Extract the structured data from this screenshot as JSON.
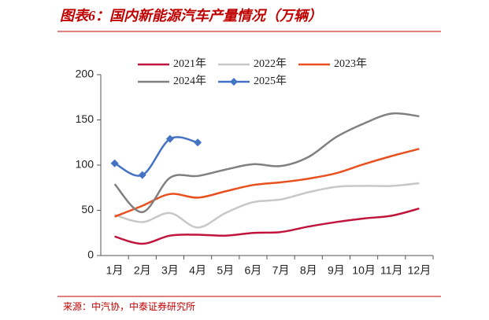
{
  "chart_data": {
    "type": "line",
    "title": "图表6：国内新能源汽车产量情况（万辆）",
    "source": "来源：中汽协，中泰证券研究所",
    "categories": [
      "1月",
      "2月",
      "3月",
      "4月",
      "5月",
      "6月",
      "7月",
      "8月",
      "9月",
      "10月",
      "11月",
      "12月"
    ],
    "series": [
      {
        "name": "2021年",
        "color": "#c0143c",
        "values": [
          21,
          13,
          22,
          23,
          22,
          25,
          26,
          32,
          37,
          41,
          44,
          52
        ]
      },
      {
        "name": "2022年",
        "color": "#c8c8c8",
        "values": [
          45,
          37,
          47,
          31,
          47,
          59,
          62,
          70,
          76,
          77,
          77,
          80
        ]
      },
      {
        "name": "2023年",
        "color": "#e8501e",
        "values": [
          43,
          55,
          68,
          64,
          71,
          78,
          81,
          85,
          91,
          101,
          110,
          118
        ]
      },
      {
        "name": "2024年",
        "color": "#808080",
        "values": [
          79,
          48,
          86,
          88,
          95,
          101,
          99,
          109,
          131,
          146,
          157,
          154
        ]
      },
      {
        "name": "2025年",
        "color": "#4472c4",
        "marker": "diamond",
        "values": [
          102,
          89,
          129,
          125,
          null,
          null,
          null,
          null,
          null,
          null,
          null,
          null
        ]
      }
    ],
    "ylim": [
      0,
      200
    ],
    "yticks": [
      0,
      50,
      100,
      150,
      200
    ],
    "grid": false
  }
}
